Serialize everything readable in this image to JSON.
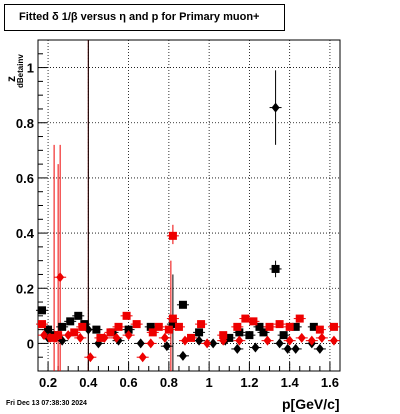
{
  "title": "Fitted δ 1/β versus η and p for Primary muon+",
  "timestamp": "Fri Dec 13 07:38:30 2024",
  "chart_data": {
    "type": "scatter",
    "title": "Fitted δ 1/β versus η and p for Primary muon+",
    "xlabel": "p[GeV/c]",
    "ylabel_main": "z",
    "ylabel_sub": "dBetainv",
    "xlim": [
      0.15,
      1.65
    ],
    "ylim": [
      -0.1,
      1.1
    ],
    "xticks": [
      "0.2",
      "0.4",
      "0.6",
      "0.8",
      "1",
      "1.2",
      "1.4",
      "1.6"
    ],
    "yticks": [
      "0",
      "0.2",
      "0.4",
      "0.6",
      "0.8",
      "1"
    ],
    "grid": true,
    "colors": {
      "black": "#000000",
      "red": "#ee0000"
    },
    "series": [
      {
        "marker": "square",
        "color": "#000000",
        "points": [
          [
            0.17,
            0.12
          ],
          [
            0.2,
            0.05
          ],
          [
            0.23,
            0.03
          ],
          [
            0.27,
            0.06
          ],
          [
            0.31,
            0.08
          ],
          [
            0.35,
            0.1
          ],
          [
            0.38,
            0.07
          ],
          [
            0.44,
            0.05
          ],
          [
            0.52,
            0.04
          ],
          [
            0.6,
            0.05
          ],
          [
            0.71,
            0.06
          ],
          [
            0.82,
            0.07
          ],
          [
            0.87,
            0.14
          ],
          [
            0.95,
            0.04
          ],
          [
            1.1,
            0.02
          ],
          [
            1.15,
            0.04
          ],
          [
            1.2,
            0.03
          ],
          [
            1.25,
            0.06
          ],
          [
            1.27,
            0.04
          ],
          [
            1.33,
            0.27
          ],
          [
            1.37,
            0.03
          ],
          [
            1.43,
            0.06
          ],
          [
            1.52,
            0.06
          ]
        ]
      },
      {
        "marker": "diamond",
        "color": "#000000",
        "points": [
          [
            0.2,
            0.02
          ],
          [
            0.27,
            0.01
          ],
          [
            0.4,
            0.05
          ],
          [
            0.45,
            0.0
          ],
          [
            0.55,
            0.01
          ],
          [
            0.66,
            0.0
          ],
          [
            0.79,
            -0.01
          ],
          [
            0.87,
            -0.045
          ],
          [
            0.95,
            0.01
          ],
          [
            1.02,
            0.0
          ],
          [
            1.08,
            0.01
          ],
          [
            1.14,
            -0.02
          ],
          [
            1.23,
            -0.015
          ],
          [
            1.33,
            0.855
          ],
          [
            1.35,
            0.0
          ],
          [
            1.39,
            -0.02
          ],
          [
            1.43,
            -0.02
          ],
          [
            1.51,
            0.0
          ],
          [
            1.55,
            -0.02
          ]
        ]
      },
      {
        "marker": "square",
        "color": "#ee0000",
        "points": [
          [
            0.17,
            0.07
          ],
          [
            0.22,
            0.02
          ],
          [
            0.25,
            0.03
          ],
          [
            0.33,
            0.04
          ],
          [
            0.37,
            0.06
          ],
          [
            0.46,
            0.02
          ],
          [
            0.51,
            0.04
          ],
          [
            0.55,
            0.06
          ],
          [
            0.59,
            0.1
          ],
          [
            0.64,
            0.07
          ],
          [
            0.72,
            0.04
          ],
          [
            0.75,
            0.06
          ],
          [
            0.8,
            0.05
          ],
          [
            0.82,
            0.09
          ],
          [
            0.82,
            0.39
          ],
          [
            0.85,
            0.06
          ],
          [
            0.91,
            0.02
          ],
          [
            0.96,
            0.07
          ],
          [
            1.07,
            0.03
          ],
          [
            1.14,
            0.06
          ],
          [
            1.18,
            0.09
          ],
          [
            1.22,
            0.08
          ],
          [
            1.3,
            0.06
          ],
          [
            1.35,
            0.07
          ],
          [
            1.4,
            0.06
          ],
          [
            1.45,
            0.09
          ],
          [
            1.55,
            0.05
          ],
          [
            1.62,
            0.06
          ]
        ]
      },
      {
        "marker": "diamond",
        "color": "#ee0000",
        "points": [
          [
            0.18,
            0.03
          ],
          [
            0.21,
            0.02
          ],
          [
            0.24,
            0.02
          ],
          [
            0.26,
            0.24
          ],
          [
            0.3,
            0.03
          ],
          [
            0.36,
            0.02
          ],
          [
            0.41,
            -0.05
          ],
          [
            0.48,
            0.02
          ],
          [
            0.54,
            0.02
          ],
          [
            0.6,
            0.03
          ],
          [
            0.67,
            -0.05
          ],
          [
            0.71,
            0.0
          ],
          [
            0.78,
            0.02
          ],
          [
            0.88,
            0.01
          ],
          [
            0.99,
            0.0
          ],
          [
            1.07,
            0.01
          ],
          [
            1.15,
            0.01
          ],
          [
            1.29,
            0.01
          ],
          [
            1.4,
            0.01
          ],
          [
            1.46,
            0.02
          ],
          [
            1.51,
            0.01
          ],
          [
            1.56,
            0.02
          ],
          [
            1.62,
            0.01
          ]
        ]
      }
    ],
    "error_bars": [
      {
        "color": "#000000",
        "x": 1.33,
        "y_low": 0.72,
        "y_high": 0.99
      },
      {
        "color": "#000000",
        "x": 1.33,
        "y_low": 0.24,
        "y_high": 0.3
      },
      {
        "color": "#ee0000",
        "x": 0.82,
        "y_low": 0.36,
        "y_high": 0.43
      },
      {
        "color": "#ee0000",
        "x": 0.26,
        "y_low": -0.1,
        "y_high": 0.72
      },
      {
        "color": "#ee0000",
        "x": 0.23,
        "y_low": -0.1,
        "y_high": 0.72
      },
      {
        "color": "#ee0000",
        "x": 0.25,
        "y_low": -0.1,
        "y_high": 0.65
      },
      {
        "color": "#ee0000",
        "x": 0.4,
        "y_low": -0.1,
        "y_high": 1.1
      },
      {
        "color": "#000000",
        "x": 0.4,
        "y_low": -0.1,
        "y_high": 1.1
      },
      {
        "color": "#ee0000",
        "x": 0.81,
        "y_low": -0.1,
        "y_high": 0.3
      },
      {
        "color": "#000000",
        "x": 0.82,
        "y_low": -0.1,
        "y_high": 0.25
      }
    ]
  }
}
